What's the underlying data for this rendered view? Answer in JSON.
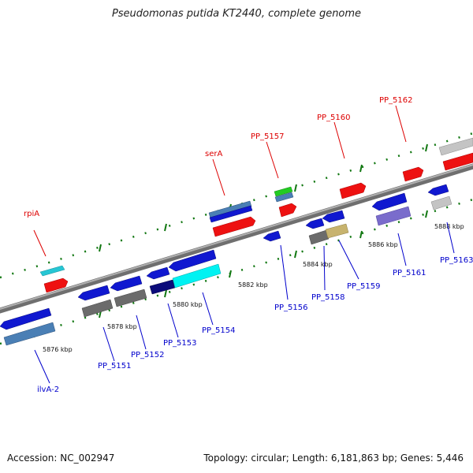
{
  "title": "Pseudomonas putida KT2440, complete genome",
  "footer": {
    "accession": "Accession: NC_002947",
    "summary": "Topology: circular; Length: 6,181,863 bp; Genes: 5,446"
  },
  "colors": {
    "label_top": "#dd0000",
    "label_bottom": "#0000cc",
    "tick": "#117711",
    "backbone": "#8a8a8a"
  },
  "scale_labels": [
    "5876 kbp",
    "5878 kbp",
    "5880 kbp",
    "5882 kbp",
    "5884 kbp",
    "5886 kbp",
    "5888 kbp"
  ],
  "genes_top": [
    "rpiA",
    "serA",
    "PP_5157",
    "PP_5160",
    "PP_5162"
  ],
  "genes_bottom": [
    "ilvA-2",
    "PP_5151",
    "PP_5152",
    "PP_5153",
    "PP_5154",
    "PP_5156",
    "PP_5158",
    "PP_5159",
    "PP_5161",
    "PP_5163"
  ]
}
